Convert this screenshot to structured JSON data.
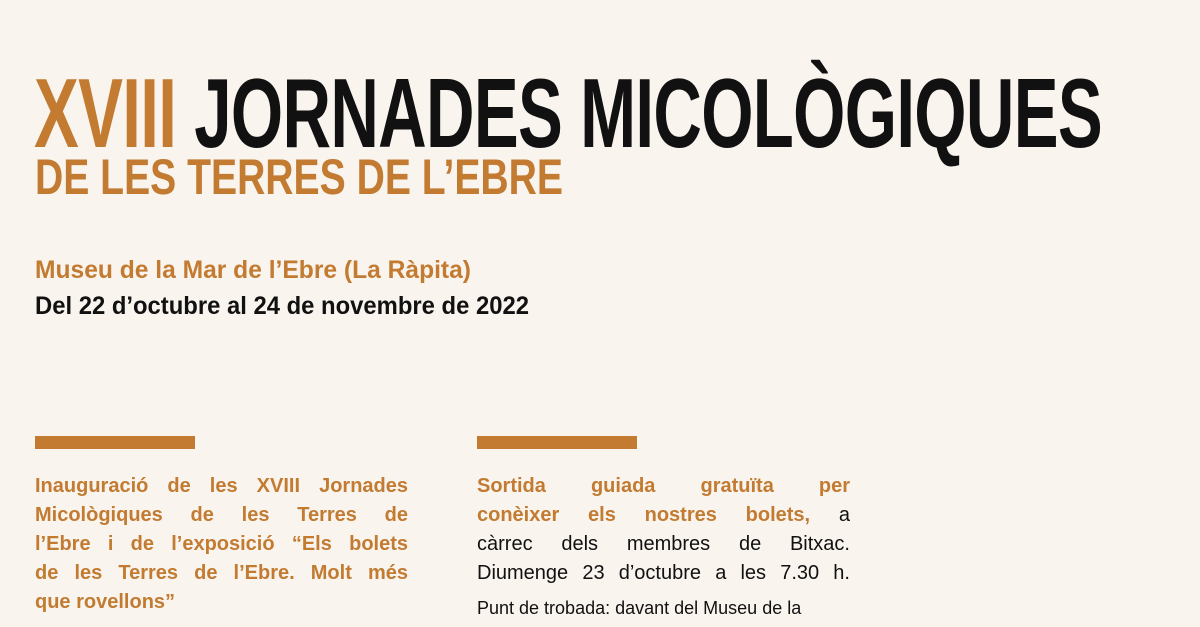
{
  "header": {
    "title_number": "XVIII",
    "title_main": "JORNADES MICOLÒGIQUES",
    "subtitle": "DE LES TERRES DE L’EBRE",
    "venue": "Museu de la Mar de l’Ebre (La Ràpita)",
    "dates": "Del 22 d’octubre al 24 de novembre de 2022"
  },
  "colors": {
    "accent": "#c27b31",
    "text": "#111111",
    "background": "#f9f4ee"
  },
  "events": [
    {
      "lines": [
        "Inauguració de les XVIII Jornades",
        "Micològiques de les Terres de",
        "l’Ebre i de l’exposició “Els bolets",
        "de les Terres de l’Ebre. Molt més",
        "que rovellons”"
      ]
    },
    {
      "title_line1": "Sortida guiada gratuïta per",
      "title_line2": "conèixer els nostres bolets,",
      "line2_tail": "a",
      "line3": "càrrec dels membres de Bitxac.",
      "line4": "Diumenge 23 d’octubre a les 7.30 h.",
      "note": "Punt de trobada: davant del Museu de la"
    }
  ]
}
